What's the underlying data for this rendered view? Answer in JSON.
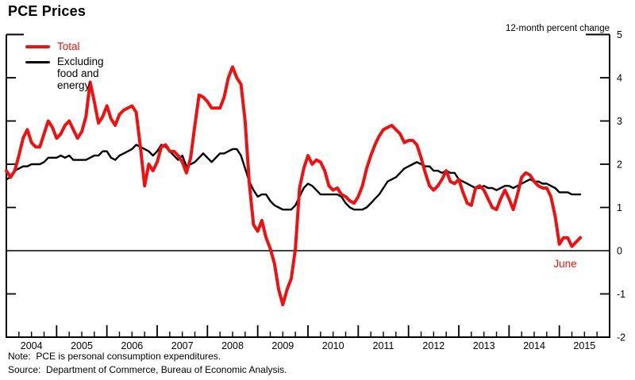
{
  "title": "PCE Prices",
  "axis_unit_label": "12-month percent change",
  "colors": {
    "total": "#ee1111",
    "core": "#000000"
  },
  "legend": [
    {
      "label": "Total",
      "color": "#ee1111"
    },
    {
      "label": "Excluding food and energy",
      "color": "#000000"
    }
  ],
  "annotation": {
    "text": "June",
    "color": "#ee1111"
  },
  "notes": {
    "note": "Note:  PCE is personal consumption expenditures.",
    "source": "Source:  Department of Commerce, Bureau of Economic Analysis."
  },
  "chart_data": {
    "type": "line",
    "title": "PCE Prices",
    "ylabel": "12-month percent change",
    "frequency": "monthly",
    "x_start": "2004-01",
    "x_end": "2015-06",
    "x_tick_years": [
      2004,
      2005,
      2006,
      2007,
      2008,
      2009,
      2010,
      2011,
      2012,
      2013,
      2014,
      2015
    ],
    "x_minor_ticks": "quarterly",
    "y_ticks": [
      -2,
      -1,
      0,
      1,
      2,
      3,
      4,
      5
    ],
    "ylim": [
      -2,
      5
    ],
    "zero_line": true,
    "grid": false,
    "legend_position": "top-left",
    "last_point_label": "June",
    "series": [
      {
        "name": "Total",
        "color": "#ee1111",
        "values": [
          1.85,
          1.7,
          1.85,
          2.2,
          2.6,
          2.8,
          2.5,
          2.4,
          2.4,
          2.7,
          3.0,
          2.85,
          2.6,
          2.7,
          2.9,
          3.0,
          2.8,
          2.6,
          2.75,
          3.1,
          3.9,
          3.45,
          2.95,
          3.1,
          3.35,
          3.05,
          2.9,
          3.15,
          3.25,
          3.3,
          3.35,
          3.2,
          2.4,
          1.5,
          2.0,
          1.85,
          2.05,
          2.4,
          2.45,
          2.3,
          2.3,
          2.2,
          2.05,
          1.8,
          2.15,
          2.9,
          3.6,
          3.55,
          3.45,
          3.3,
          3.3,
          3.3,
          3.55,
          4.0,
          4.25,
          4.0,
          3.85,
          3.0,
          1.55,
          0.6,
          0.45,
          0.7,
          0.3,
          0.05,
          -0.3,
          -0.9,
          -1.25,
          -0.9,
          -0.65,
          0.05,
          1.45,
          1.9,
          2.2,
          2.0,
          2.1,
          2.05,
          1.85,
          1.5,
          1.4,
          1.45,
          1.3,
          1.25,
          1.15,
          1.1,
          1.25,
          1.5,
          1.9,
          2.2,
          2.45,
          2.65,
          2.8,
          2.85,
          2.9,
          2.8,
          2.7,
          2.5,
          2.55,
          2.55,
          2.45,
          2.15,
          1.8,
          1.5,
          1.4,
          1.5,
          1.65,
          1.85,
          1.6,
          1.55,
          1.65,
          1.35,
          1.1,
          1.05,
          1.45,
          1.5,
          1.4,
          1.2,
          1.0,
          0.95,
          1.2,
          1.4,
          1.2,
          0.95,
          1.3,
          1.7,
          1.8,
          1.75,
          1.6,
          1.5,
          1.45,
          1.45,
          1.25,
          0.8,
          0.15,
          0.3,
          0.3,
          0.1,
          0.2,
          0.3
        ]
      },
      {
        "name": "Excluding food and energy",
        "color": "#000000",
        "values": [
          1.65,
          1.7,
          1.85,
          1.9,
          1.95,
          1.95,
          2.0,
          2.0,
          2.0,
          2.05,
          2.15,
          2.15,
          2.15,
          2.2,
          2.15,
          2.2,
          2.1,
          2.1,
          2.1,
          2.1,
          2.15,
          2.2,
          2.2,
          2.3,
          2.3,
          2.15,
          2.1,
          2.2,
          2.25,
          2.3,
          2.35,
          2.45,
          2.4,
          2.35,
          2.3,
          2.2,
          2.3,
          2.45,
          2.4,
          2.3,
          2.2,
          2.1,
          2.2,
          1.95,
          2.0,
          2.05,
          2.15,
          2.25,
          2.15,
          2.05,
          2.15,
          2.25,
          2.25,
          2.3,
          2.35,
          2.35,
          2.2,
          1.9,
          1.6,
          1.4,
          1.25,
          1.3,
          1.3,
          1.15,
          1.05,
          1.0,
          0.95,
          0.95,
          0.95,
          1.05,
          1.25,
          1.45,
          1.55,
          1.5,
          1.4,
          1.3,
          1.3,
          1.3,
          1.3,
          1.3,
          1.25,
          1.1,
          1.0,
          0.95,
          0.95,
          0.95,
          1.0,
          1.1,
          1.2,
          1.3,
          1.45,
          1.6,
          1.65,
          1.7,
          1.8,
          1.9,
          1.95,
          2.0,
          2.05,
          2.0,
          1.95,
          1.95,
          1.85,
          1.85,
          1.8,
          1.85,
          1.8,
          1.8,
          1.65,
          1.6,
          1.55,
          1.5,
          1.45,
          1.45,
          1.5,
          1.45,
          1.45,
          1.4,
          1.45,
          1.5,
          1.5,
          1.45,
          1.5,
          1.55,
          1.6,
          1.65,
          1.6,
          1.6,
          1.55,
          1.55,
          1.5,
          1.45,
          1.35,
          1.35,
          1.35,
          1.3,
          1.3,
          1.3
        ]
      }
    ]
  }
}
